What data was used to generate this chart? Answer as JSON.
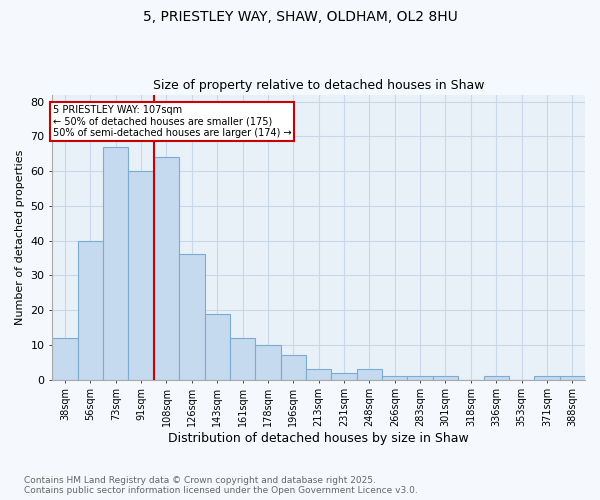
{
  "title1": "5, PRIESTLEY WAY, SHAW, OLDHAM, OL2 8HU",
  "title2": "Size of property relative to detached houses in Shaw",
  "xlabel": "Distribution of detached houses by size in Shaw",
  "ylabel": "Number of detached properties",
  "bin_labels": [
    "38sqm",
    "56sqm",
    "73sqm",
    "91sqm",
    "108sqm",
    "126sqm",
    "143sqm",
    "161sqm",
    "178sqm",
    "196sqm",
    "213sqm",
    "231sqm",
    "248sqm",
    "266sqm",
    "283sqm",
    "301sqm",
    "318sqm",
    "336sqm",
    "353sqm",
    "371sqm",
    "388sqm"
  ],
  "bar_heights": [
    12,
    40,
    67,
    60,
    64,
    36,
    19,
    12,
    10,
    7,
    3,
    2,
    3,
    1,
    1,
    1,
    0,
    1,
    0,
    1,
    1
  ],
  "bar_color": "#c5d9ef",
  "bar_edge_color": "#7aadd4",
  "vline_color": "#cc0000",
  "annotation_text": "5 PRIESTLEY WAY: 107sqm\n← 50% of detached houses are smaller (175)\n50% of semi-detached houses are larger (174) →",
  "annotation_box_color": "#cc0000",
  "footer_text": "Contains HM Land Registry data © Crown copyright and database right 2025.\nContains public sector information licensed under the Open Government Licence v3.0.",
  "ylim": [
    0,
    82
  ],
  "yticks": [
    0,
    10,
    20,
    30,
    40,
    50,
    60,
    70,
    80
  ],
  "grid_color": "#c8d8ea",
  "bg_color": "#e8f0f8",
  "fig_bg_color": "#f5f8fc"
}
